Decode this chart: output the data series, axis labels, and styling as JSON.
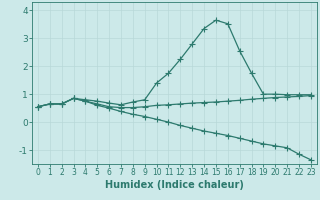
{
  "title": "",
  "xlabel": "Humidex (Indice chaleur)",
  "ylabel": "",
  "bg_color": "#cce9e9",
  "line_color": "#2d7a6e",
  "grid_color": "#b8d8d8",
  "xlim": [
    -0.5,
    23.5
  ],
  "ylim": [
    -1.5,
    4.3
  ],
  "xticks": [
    0,
    1,
    2,
    3,
    4,
    5,
    6,
    7,
    8,
    9,
    10,
    11,
    12,
    13,
    14,
    15,
    16,
    17,
    18,
    19,
    20,
    21,
    22,
    23
  ],
  "yticks": [
    -1,
    0,
    1,
    2,
    3,
    4
  ],
  "line1_x": [
    0,
    1,
    2,
    3,
    4,
    5,
    6,
    7,
    8,
    9,
    10,
    11,
    12,
    13,
    14,
    15,
    16,
    17,
    18,
    19,
    20,
    21,
    22,
    23
  ],
  "line1_y": [
    0.55,
    0.65,
    0.65,
    0.85,
    0.8,
    0.75,
    0.68,
    0.62,
    0.72,
    0.8,
    1.4,
    1.75,
    2.25,
    2.8,
    3.35,
    3.65,
    3.52,
    2.55,
    1.75,
    1.0,
    1.0,
    0.98,
    0.98,
    0.98
  ],
  "line2_x": [
    0,
    1,
    2,
    3,
    4,
    5,
    6,
    7,
    8,
    9,
    10,
    11,
    12,
    13,
    14,
    15,
    16,
    17,
    18,
    19,
    20,
    21,
    22,
    23
  ],
  "line2_y": [
    0.55,
    0.65,
    0.65,
    0.85,
    0.75,
    0.65,
    0.55,
    0.52,
    0.52,
    0.55,
    0.6,
    0.62,
    0.65,
    0.68,
    0.7,
    0.72,
    0.75,
    0.78,
    0.82,
    0.85,
    0.88,
    0.9,
    0.92,
    0.95
  ],
  "line3_x": [
    0,
    1,
    2,
    3,
    4,
    5,
    6,
    7,
    8,
    9,
    10,
    11,
    12,
    13,
    14,
    15,
    16,
    17,
    18,
    19,
    20,
    21,
    22,
    23
  ],
  "line3_y": [
    0.55,
    0.65,
    0.65,
    0.85,
    0.75,
    0.6,
    0.5,
    0.38,
    0.28,
    0.2,
    0.1,
    0.0,
    -0.12,
    -0.22,
    -0.32,
    -0.4,
    -0.48,
    -0.58,
    -0.68,
    -0.78,
    -0.85,
    -0.92,
    -1.15,
    -1.35
  ],
  "marker": "+",
  "marker_size": 4,
  "linewidth": 0.9
}
